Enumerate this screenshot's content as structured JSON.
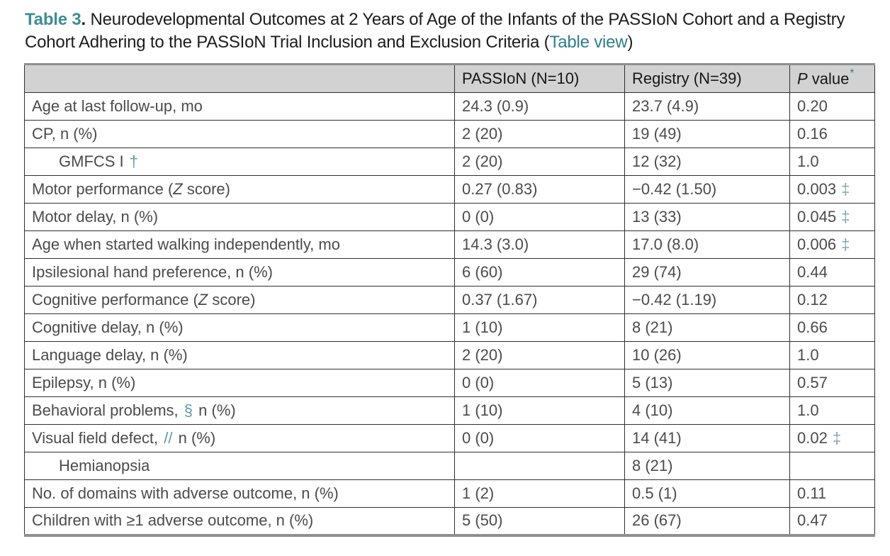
{
  "title": {
    "label": "Table 3",
    "period": ". ",
    "text": "Neurodevelopmental Outcomes at 2 Years of Age of the Infants of the PASSIoN Cohort and a Registry Cohort Adhering to the PASSIoN Trial Inclusion and Exclusion Criteria (",
    "link": "Table view",
    "suffix": ")"
  },
  "colors": {
    "title_teal": "#3f8d96",
    "link_teal": "#2f7e8d",
    "symbol_teal": "#5e99a5",
    "header_background": "#d2d2d2",
    "border_dark": "#2f2f2f",
    "border_gray": "#8f8f8f",
    "cell_text": "#4b4b4b"
  },
  "table": {
    "header": {
      "col0": "",
      "col1": "PASSIoN (N=10)",
      "col2": "Registry (N=39)",
      "p_label": "P",
      "p_value": " value",
      "p_sym": "*"
    },
    "rows": [
      {
        "indent": false,
        "label": [
          [
            "t",
            "Age at last follow-up, mo"
          ]
        ],
        "passion": "24.3 (0.9)",
        "registry": "23.7 (4.9)",
        "p": "0.20",
        "p_sym": ""
      },
      {
        "indent": false,
        "label": [
          [
            "t",
            "CP, n (%)"
          ]
        ],
        "passion": "2 (20)",
        "registry": "19 (49)",
        "p": "0.16",
        "p_sym": ""
      },
      {
        "indent": true,
        "label": [
          [
            "t",
            "GMFCS I "
          ],
          [
            "s",
            "†"
          ]
        ],
        "passion": "2 (20)",
        "registry": "12 (32)",
        "p": "1.0",
        "p_sym": ""
      },
      {
        "indent": false,
        "label": [
          [
            "t",
            "Motor performance ("
          ],
          [
            "i",
            "Z"
          ],
          [
            "t",
            " score)"
          ]
        ],
        "passion": "0.27 (0.83)",
        "registry": "−0.42 (1.50)",
        "p": "0.003",
        "p_sym": "‡"
      },
      {
        "indent": false,
        "label": [
          [
            "t",
            "Motor delay, n (%)"
          ]
        ],
        "passion": "0 (0)",
        "registry": "13 (33)",
        "p": "0.045",
        "p_sym": "‡"
      },
      {
        "indent": false,
        "label": [
          [
            "t",
            "Age when started walking independently, mo"
          ]
        ],
        "passion": "14.3 (3.0)",
        "registry": "17.0 (8.0)",
        "p": "0.006",
        "p_sym": "‡"
      },
      {
        "indent": false,
        "label": [
          [
            "t",
            "Ipsilesional hand preference, n (%)"
          ]
        ],
        "passion": "6 (60)",
        "registry": "29 (74)",
        "p": "0.44",
        "p_sym": ""
      },
      {
        "indent": false,
        "label": [
          [
            "t",
            "Cognitive performance ("
          ],
          [
            "i",
            "Z"
          ],
          [
            "t",
            " score)"
          ]
        ],
        "passion": "0.37 (1.67)",
        "registry": "−0.42 (1.19)",
        "p": "0.12",
        "p_sym": ""
      },
      {
        "indent": false,
        "label": [
          [
            "t",
            "Cognitive delay, n (%)"
          ]
        ],
        "passion": "1 (10)",
        "registry": "8 (21)",
        "p": "0.66",
        "p_sym": ""
      },
      {
        "indent": false,
        "label": [
          [
            "t",
            "Language delay, n (%)"
          ]
        ],
        "passion": "2 (20)",
        "registry": "10 (26)",
        "p": "1.0",
        "p_sym": ""
      },
      {
        "indent": false,
        "label": [
          [
            "t",
            "Epilepsy, n (%)"
          ]
        ],
        "passion": "0 (0)",
        "registry": "5 (13)",
        "p": "0.57",
        "p_sym": ""
      },
      {
        "indent": false,
        "label": [
          [
            "t",
            "Behavioral problems, "
          ],
          [
            "s",
            "§"
          ],
          [
            "t",
            " n (%)"
          ]
        ],
        "passion": "1 (10)",
        "registry": "4 (10)",
        "p": "1.0",
        "p_sym": ""
      },
      {
        "indent": false,
        "label": [
          [
            "t",
            "Visual field defect, "
          ],
          [
            "s",
            "//"
          ],
          [
            "t",
            " n (%)"
          ]
        ],
        "passion": "0 (0)",
        "registry": "14 (41)",
        "p": "0.02",
        "p_sym": "‡"
      },
      {
        "indent": true,
        "label": [
          [
            "t",
            "Hemianopsia"
          ]
        ],
        "passion": "",
        "registry": "8 (21)",
        "p": "",
        "p_sym": ""
      },
      {
        "indent": false,
        "label": [
          [
            "t",
            "No. of domains with adverse outcome, n (%)"
          ]
        ],
        "passion": "1 (2)",
        "registry": "0.5 (1)",
        "p": "0.11",
        "p_sym": ""
      },
      {
        "indent": false,
        "label": [
          [
            "t",
            "Children with ≥1 adverse outcome, n (%)"
          ]
        ],
        "passion": "5 (50)",
        "registry": "26 (67)",
        "p": "0.47",
        "p_sym": ""
      }
    ]
  }
}
